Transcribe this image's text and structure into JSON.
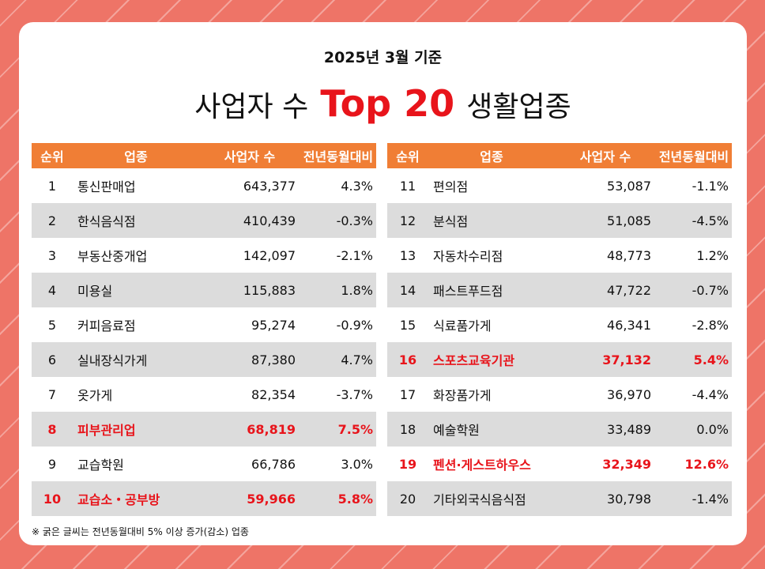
{
  "subtitle": "2025년 3월 기준",
  "title": {
    "pre": "사업자 수",
    "highlight": "Top 20",
    "post": "생활업종"
  },
  "columns": {
    "rank": "순위",
    "name": "업종",
    "count": "사업자 수",
    "change": "전년동월대비"
  },
  "left_rows": [
    {
      "rank": "1",
      "name": "통신판매업",
      "count": "643,377",
      "change": "4.3%",
      "bold": false
    },
    {
      "rank": "2",
      "name": "한식음식점",
      "count": "410,439",
      "change": "-0.3%",
      "bold": false
    },
    {
      "rank": "3",
      "name": "부동산중개업",
      "count": "142,097",
      "change": "-2.1%",
      "bold": false
    },
    {
      "rank": "4",
      "name": "미용실",
      "count": "115,883",
      "change": "1.8%",
      "bold": false
    },
    {
      "rank": "5",
      "name": "커피음료점",
      "count": "95,274",
      "change": "-0.9%",
      "bold": false
    },
    {
      "rank": "6",
      "name": "실내장식가게",
      "count": "87,380",
      "change": "4.7%",
      "bold": false
    },
    {
      "rank": "7",
      "name": "옷가게",
      "count": "82,354",
      "change": "-3.7%",
      "bold": false
    },
    {
      "rank": "8",
      "name": "피부관리업",
      "count": "68,819",
      "change": "7.5%",
      "bold": true
    },
    {
      "rank": "9",
      "name": "교습학원",
      "count": "66,786",
      "change": "3.0%",
      "bold": false
    },
    {
      "rank": "10",
      "name": "교습소・공부방",
      "count": "59,966",
      "change": "5.8%",
      "bold": true
    }
  ],
  "right_rows": [
    {
      "rank": "11",
      "name": "편의점",
      "count": "53,087",
      "change": "-1.1%",
      "bold": false
    },
    {
      "rank": "12",
      "name": "분식점",
      "count": "51,085",
      "change": "-4.5%",
      "bold": false
    },
    {
      "rank": "13",
      "name": "자동차수리점",
      "count": "48,773",
      "change": "1.2%",
      "bold": false
    },
    {
      "rank": "14",
      "name": "패스트푸드점",
      "count": "47,722",
      "change": "-0.7%",
      "bold": false
    },
    {
      "rank": "15",
      "name": "식료품가게",
      "count": "46,341",
      "change": "-2.8%",
      "bold": false
    },
    {
      "rank": "16",
      "name": "스포츠교육기관",
      "count": "37,132",
      "change": "5.4%",
      "bold": true
    },
    {
      "rank": "17",
      "name": "화장품가게",
      "count": "36,970",
      "change": "-4.4%",
      "bold": false
    },
    {
      "rank": "18",
      "name": "예술학원",
      "count": "33,489",
      "change": "0.0%",
      "bold": false
    },
    {
      "rank": "19",
      "name": "펜션·게스트하우스",
      "count": "32,349",
      "change": "12.6%",
      "bold": true
    },
    {
      "rank": "20",
      "name": "기타외국식음식점",
      "count": "30,798",
      "change": "-1.4%",
      "bold": false
    }
  ],
  "footnote": "※ 굵은 글씨는 전년동월대비 5% 이상 증가(감소) 업종",
  "colors": {
    "background": "#ee7467",
    "header": "#f07e35",
    "highlight": "#e8141b",
    "row_shade": "#dcdcdc"
  }
}
